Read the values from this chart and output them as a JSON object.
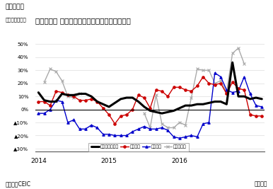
{
  "title": "フィリピン 工業生産量指数（業種別）の伸び率",
  "subtitle": "（図表６）",
  "ylabel_note": "（前年同月比）",
  "xlabel_note": "（月次）",
  "source": "（資料）CEIC",
  "ylim": [
    -0.32,
    0.52
  ],
  "yticks": [
    -0.3,
    -0.2,
    -0.1,
    0.0,
    0.1,
    0.2,
    0.3,
    0.4,
    0.5
  ],
  "ytick_labels": [
    "▲30%",
    "▲20%",
    "▲10%",
    "0%",
    "10%",
    "20%",
    "30%",
    "40%",
    "50%"
  ],
  "xtick_positions": [
    0,
    12,
    24
  ],
  "xtick_labels": [
    "2014",
    "2015",
    "2016"
  ],
  "series_industrial": {
    "label": "工業生産量指数",
    "color": "#000000",
    "linewidth": 2.2,
    "marker": null,
    "values": [
      0.13,
      0.07,
      0.06,
      0.06,
      0.12,
      0.11,
      0.11,
      0.12,
      0.12,
      0.1,
      0.06,
      0.04,
      0.02,
      0.05,
      0.08,
      0.09,
      0.09,
      0.06,
      0.02,
      -0.01,
      -0.02,
      -0.03,
      -0.02,
      -0.01,
      0.01,
      0.03,
      0.03,
      0.04,
      0.04,
      0.05,
      0.06,
      0.06,
      0.04,
      0.36,
      0.1,
      0.1,
      0.08,
      0.09,
      0.08
    ]
  },
  "series_electric": {
    "label": "電気機械",
    "color": "#cc0000",
    "linewidth": 1.0,
    "marker": "o",
    "markersize": 2.5,
    "values": [
      0.06,
      0.06,
      0.03,
      0.14,
      0.13,
      0.11,
      0.1,
      0.07,
      0.07,
      0.08,
      0.06,
      0.01,
      -0.04,
      -0.11,
      -0.05,
      -0.04,
      0.0,
      0.11,
      0.09,
      0.01,
      0.15,
      0.14,
      0.1,
      0.17,
      0.17,
      0.15,
      0.14,
      0.18,
      0.25,
      0.2,
      0.19,
      0.2,
      0.12,
      0.21,
      0.16,
      0.15,
      -0.04,
      -0.05,
      -0.05
    ]
  },
  "series_food": {
    "label": "食品加工",
    "color": "#0000cc",
    "linewidth": 1.0,
    "marker": "^",
    "markersize": 2.5,
    "values": [
      -0.03,
      -0.03,
      0.0,
      0.07,
      0.06,
      -0.1,
      -0.08,
      -0.15,
      -0.15,
      -0.12,
      -0.14,
      -0.19,
      -0.19,
      -0.2,
      -0.2,
      -0.2,
      -0.17,
      -0.15,
      -0.13,
      -0.15,
      -0.15,
      -0.14,
      -0.16,
      -0.21,
      -0.22,
      -0.21,
      -0.2,
      -0.21,
      -0.11,
      -0.1,
      0.28,
      0.25,
      0.15,
      0.13,
      0.14,
      0.25,
      0.12,
      0.03,
      0.02
    ]
  },
  "series_machinery": {
    "label": "機械・設備",
    "color": "#aaaaaa",
    "linewidth": 1.0,
    "marker": "x",
    "markersize": 3.5,
    "values": [
      null,
      0.21,
      0.31,
      0.29,
      0.22,
      0.1,
      0.09,
      0.12,
      null,
      null,
      null,
      null,
      null,
      null,
      null,
      null,
      null,
      null,
      -0.03,
      -0.14,
      0.11,
      -0.11,
      -0.14,
      -0.14,
      -0.1,
      -0.12,
      0.09,
      0.31,
      0.3,
      0.3,
      0.2,
      0.22,
      0.13,
      0.43,
      0.47,
      0.35,
      null,
      null,
      null
    ]
  }
}
